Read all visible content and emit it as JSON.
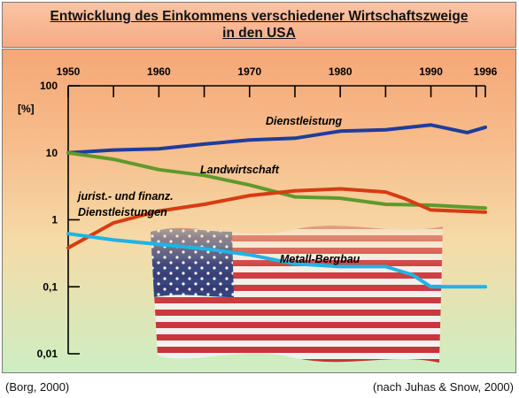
{
  "title_line1": "Entwicklung des Einkommens verschiedener Wirtschaftszweige",
  "title_line2": "in den USA",
  "source_left": "(Borg, 2000)",
  "source_right": "(nach Juhas & Snow, 2000)",
  "chart_data": {
    "type": "line",
    "title": "Entwicklung des Einkommens verschiedener Wirtschaftszweige in den USA",
    "xlabel": "",
    "ylabel": "[%]",
    "x_ticks": [
      "1950",
      "1960",
      "1970",
      "1980",
      "1990",
      "1996"
    ],
    "y_scale": "log",
    "y_ticks": [
      "100",
      "10",
      "1",
      "0,1",
      "0,01"
    ],
    "ylim": [
      0.01,
      100
    ],
    "xlim": [
      1950,
      1996
    ],
    "grid": false,
    "colors": {
      "Dienstleistung": "#1e3d9c",
      "Landwirtschaft": "#5e9a2c",
      "jurist.- und finanz. Dienstleistungen": "#d63c12",
      "Metall-Bergbau": "#1fb4e6"
    },
    "series": [
      {
        "name": "Dienstleistung",
        "x": [
          1950,
          1955,
          1960,
          1965,
          1970,
          1975,
          1980,
          1985,
          1990,
          1994,
          1996
        ],
        "y": [
          10,
          11,
          11.5,
          13.5,
          15.5,
          16.5,
          21,
          22,
          26,
          20,
          24
        ]
      },
      {
        "name": "Landwirtschaft",
        "x": [
          1950,
          1955,
          1960,
          1965,
          1970,
          1975,
          1980,
          1985,
          1990,
          1996
        ],
        "y": [
          10,
          8,
          5.6,
          4.6,
          3.3,
          2.2,
          2.1,
          1.7,
          1.65,
          1.5
        ]
      },
      {
        "name": "jurist.- und finanz. Dienstleistungen",
        "x": [
          1950,
          1955,
          1960,
          1965,
          1970,
          1975,
          1980,
          1985,
          1987,
          1990,
          1996
        ],
        "y": [
          0.38,
          0.9,
          1.35,
          1.7,
          2.3,
          2.7,
          2.9,
          2.6,
          2.1,
          1.4,
          1.3
        ]
      },
      {
        "name": "Metall-Bergbau",
        "x": [
          1950,
          1955,
          1960,
          1965,
          1970,
          1975,
          1980,
          1985,
          1988,
          1990,
          1996
        ],
        "y": [
          0.62,
          0.5,
          0.43,
          0.37,
          0.3,
          0.22,
          0.2,
          0.2,
          0.15,
          0.1,
          0.1
        ]
      }
    ],
    "annotations": [
      "Dienstleistung",
      "Landwirtschaft",
      "jurist.- und finanz.",
      "Dienstleistungen",
      "Metall-Bergbau"
    ]
  }
}
